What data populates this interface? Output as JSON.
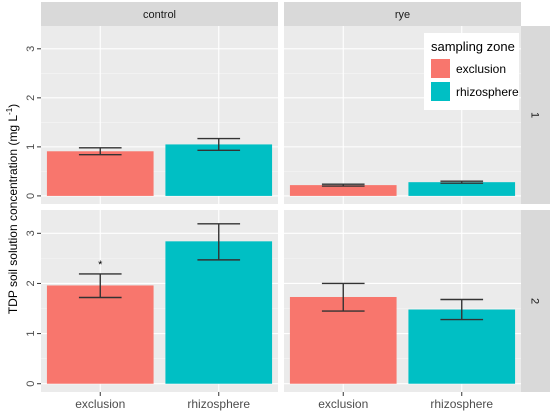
{
  "chart_data": {
    "type": "bar",
    "facet_columns": [
      "control",
      "rye"
    ],
    "facet_rows": [
      "1",
      "2"
    ],
    "categories": [
      "exclusion",
      "rhizosphere"
    ],
    "ylabel": "TDP soil solution concentration (mg L",
    "ylabel_sup": "-1",
    "ylabel_close": ")",
    "ylim": [
      0,
      3.3
    ],
    "yticks": [
      "0",
      "1",
      "2",
      "3"
    ],
    "grid": true,
    "legend": {
      "title": "sampling zone",
      "placement": "top-right",
      "entries": [
        {
          "label": "exclusion",
          "color": "#F8766D"
        },
        {
          "label": "rhizosphere",
          "color": "#00BFC4"
        }
      ]
    },
    "panels": [
      {
        "col": "control",
        "row": "1",
        "values": [
          0.91,
          1.05
        ],
        "err_low": [
          0.84,
          0.93
        ],
        "err_high": [
          0.98,
          1.17
        ]
      },
      {
        "col": "rye",
        "row": "1",
        "values": [
          0.22,
          0.28
        ],
        "err_low": [
          0.2,
          0.26
        ],
        "err_high": [
          0.24,
          0.3
        ]
      },
      {
        "col": "control",
        "row": "2",
        "values": [
          1.96,
          2.84
        ],
        "err_low": [
          1.72,
          2.47
        ],
        "err_high": [
          2.19,
          3.19
        ]
      },
      {
        "col": "rye",
        "row": "2",
        "values": [
          1.73,
          1.48
        ],
        "err_low": [
          1.45,
          1.28
        ],
        "err_high": [
          2.0,
          1.68
        ]
      }
    ],
    "annotations": [
      {
        "col": "control",
        "row": "2",
        "category": "exclusion",
        "text": "*"
      }
    ]
  }
}
